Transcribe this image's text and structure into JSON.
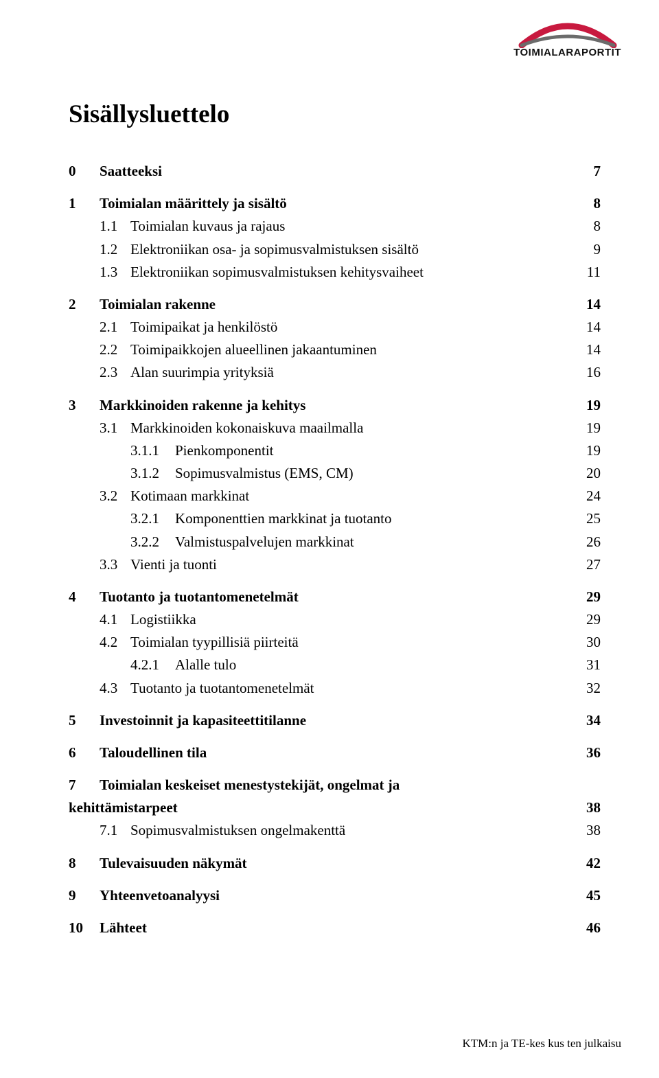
{
  "logo": {
    "text": "TOIMIALARAPORTIT",
    "arc_color_red": "#c8193f",
    "arc_color_grey": "#6b6b6b"
  },
  "title": "Sisällysluettelo",
  "footer": "KTM:n ja TE-kes kus ten julkaisu",
  "toc": [
    {
      "lvl": 0,
      "num": "0",
      "text": "Saatteeksi",
      "page": "7",
      "gap_after": true
    },
    {
      "lvl": 0,
      "num": "1",
      "text": "Toimialan määrittely ja sisältö",
      "page": "8"
    },
    {
      "lvl": 1,
      "num": "1.1",
      "text": "Toimialan kuvaus ja rajaus",
      "page": "8"
    },
    {
      "lvl": 1,
      "num": "1.2",
      "text": "Elektroniikan osa- ja sopimusvalmistuksen sisältö",
      "page": "9"
    },
    {
      "lvl": 1,
      "num": "1.3",
      "text": "Elektroniikan sopimusvalmistuksen kehitysvaiheet",
      "page": "11",
      "gap_after": true
    },
    {
      "lvl": 0,
      "num": "2",
      "text": "Toimialan rakenne",
      "page": "14"
    },
    {
      "lvl": 1,
      "num": "2.1",
      "text": "Toimipaikat ja henkilöstö",
      "page": "14"
    },
    {
      "lvl": 1,
      "num": "2.2",
      "text": "Toimipaikkojen alueellinen jakaantuminen",
      "page": "14"
    },
    {
      "lvl": 1,
      "num": "2.3",
      "text": "Alan suurimpia yrityksiä",
      "page": "16",
      "gap_after": true
    },
    {
      "lvl": 0,
      "num": "3",
      "text": "Markkinoiden rakenne ja kehitys",
      "page": "19"
    },
    {
      "lvl": 1,
      "num": "3.1",
      "text": "Markkinoiden kokonaiskuva maailmalla",
      "page": "19"
    },
    {
      "lvl": 2,
      "num": "3.1.1",
      "text": "Pienkomponentit",
      "page": "19"
    },
    {
      "lvl": 2,
      "num": "3.1.2",
      "text": "Sopimusvalmistus (EMS, CM)",
      "page": "20"
    },
    {
      "lvl": 1,
      "num": "3.2",
      "text": "Kotimaan markkinat",
      "page": "24"
    },
    {
      "lvl": 2,
      "num": "3.2.1",
      "text": "Komponenttien markkinat ja tuotanto",
      "page": "25"
    },
    {
      "lvl": 2,
      "num": "3.2.2",
      "text": "Valmistuspalvelujen markkinat",
      "page": "26"
    },
    {
      "lvl": 1,
      "num": "3.3",
      "text": "Vienti ja tuonti",
      "page": "27",
      "gap_after": true
    },
    {
      "lvl": 0,
      "num": "4",
      "text": "Tuotanto ja tuotantomenetelmät",
      "page": "29"
    },
    {
      "lvl": 1,
      "num": "4.1",
      "text": "Logistiikka",
      "page": "29"
    },
    {
      "lvl": 1,
      "num": "4.2",
      "text": "Toimialan tyypillisiä piirteitä",
      "page": "30"
    },
    {
      "lvl": 2,
      "num": "4.2.1",
      "text": "Alalle tulo",
      "page": "31"
    },
    {
      "lvl": 1,
      "num": "4.3",
      "text": "Tuotanto ja tuotantomenetelmät",
      "page": "32",
      "gap_after": true
    },
    {
      "lvl": 0,
      "num": "5",
      "text": "Investoinnit ja kapasiteettitilanne",
      "page": "34",
      "gap_after": true
    },
    {
      "lvl": 0,
      "num": "6",
      "text": "Taloudellinen tila",
      "page": "36",
      "gap_after": true
    },
    {
      "lvl": 0,
      "num": "7",
      "text": "Toimialan keskeiset menestystekijät, ongelmat ja",
      "no_leader": true
    },
    {
      "lvl": 0,
      "num": "",
      "text": "kehittämistarpeet",
      "page": "38",
      "flush": true
    },
    {
      "lvl": 1,
      "num": "7.1",
      "text": "Sopimusvalmistuksen ongelmakenttä",
      "page": "38",
      "gap_after": true
    },
    {
      "lvl": 0,
      "num": "8",
      "text": "Tulevaisuuden näkymät",
      "page": "42",
      "gap_after": true
    },
    {
      "lvl": 0,
      "num": "9",
      "text": "Yhteenvetoanalyysi",
      "page": "45",
      "gap_after": true
    },
    {
      "lvl": 0,
      "num": "10",
      "text": "Lähteet",
      "page": "46"
    }
  ]
}
